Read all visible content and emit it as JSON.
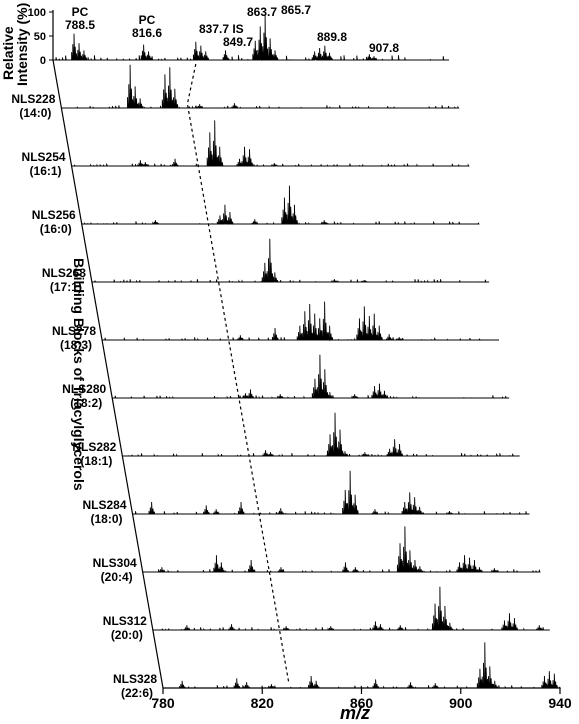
{
  "chart_data": {
    "type": "line",
    "title": "",
    "xlabel": "m/z",
    "ylabel": "Relative Intensity (%)",
    "side_label": "Building Blocks of Triacylglycerols",
    "xlim": [
      780,
      940
    ],
    "x_ticks": [
      "780",
      "820",
      "860",
      "900",
      "940"
    ],
    "y_ticks_top": [
      "100",
      "50",
      "0"
    ],
    "top_spectrum": {
      "name": "",
      "peaks": [
        {
          "mz": 788.5,
          "label": "PC\n788.5",
          "intensity": 55
        },
        {
          "mz": 816.6,
          "label": "PC\n816.6",
          "intensity": 32
        },
        {
          "mz": 837.7,
          "label": "837.7",
          "intensity": 38
        },
        {
          "mz": 849.7,
          "label": "IS\n849.7",
          "intensity": 20
        },
        {
          "mz": 863.7,
          "label": "863.7",
          "intensity": 70
        },
        {
          "mz": 865.7,
          "label": "865.7",
          "intensity": 95
        },
        {
          "mz": 889.8,
          "label": "889.8",
          "intensity": 30
        },
        {
          "mz": 907.8,
          "label": "907.8",
          "intensity": 12
        }
      ]
    },
    "series": [
      {
        "name": "NLS228",
        "sub": "(14:0)",
        "peaks": [
          [
            807.7,
            90
          ],
          [
            809.7,
            45
          ],
          [
            811.7,
            20
          ],
          [
            821.7,
            70
          ],
          [
            823.7,
            85
          ],
          [
            825.7,
            40
          ],
          [
            835.7,
            8
          ],
          [
            849.7,
            10
          ]
        ]
      },
      {
        "name": "NLS254",
        "sub": "(16:1)",
        "peaks": [
          [
            807.7,
            12
          ],
          [
            809.7,
            8
          ],
          [
            821.7,
            15
          ],
          [
            835.7,
            70
          ],
          [
            837.7,
            95
          ],
          [
            839.7,
            40
          ],
          [
            847.7,
            15
          ],
          [
            849.7,
            40
          ],
          [
            851.7,
            35
          ],
          [
            861.7,
            6
          ]
        ]
      },
      {
        "name": "NLS256",
        "sub": "(16:0)",
        "peaks": [
          [
            809.7,
            8
          ],
          [
            835.7,
            18
          ],
          [
            837.7,
            40
          ],
          [
            839.7,
            25
          ],
          [
            849.7,
            10
          ],
          [
            861.7,
            55
          ],
          [
            863.7,
            80
          ],
          [
            865.7,
            40
          ],
          [
            877.7,
            8
          ]
        ]
      },
      {
        "name": "NLS268",
        "sub": "(17:1)",
        "peaks": [
          [
            849.7,
            40
          ],
          [
            851.7,
            90
          ],
          [
            853.7,
            20
          ],
          [
            877.7,
            6
          ],
          [
            889.7,
            4
          ]
        ]
      },
      {
        "name": "NLS278",
        "sub": "(18:3)",
        "peaks": [
          [
            835.7,
            10
          ],
          [
            849.7,
            25
          ],
          [
            859.7,
            30
          ],
          [
            861.7,
            60
          ],
          [
            863.7,
            75
          ],
          [
            865.7,
            55
          ],
          [
            867.7,
            45
          ],
          [
            869.7,
            80
          ],
          [
            871.7,
            30
          ],
          [
            883.7,
            45
          ],
          [
            885.7,
            70
          ],
          [
            887.7,
            50
          ],
          [
            889.7,
            55
          ],
          [
            891.7,
            30
          ],
          [
            895.7,
            12
          ],
          [
            899.7,
            6
          ]
        ]
      },
      {
        "name": "NLS280",
        "sub": "(18:2)",
        "peaks": [
          [
            833.7,
            10
          ],
          [
            835.7,
            18
          ],
          [
            847.7,
            8
          ],
          [
            861.7,
            40
          ],
          [
            863.7,
            90
          ],
          [
            865.7,
            60
          ],
          [
            867.7,
            12
          ],
          [
            877.7,
            8
          ],
          [
            885.7,
            25
          ],
          [
            887.7,
            30
          ],
          [
            889.7,
            15
          ]
        ]
      },
      {
        "name": "NLS282",
        "sub": "(18:1)",
        "peaks": [
          [
            837.7,
            12
          ],
          [
            839.7,
            8
          ],
          [
            863.7,
            45
          ],
          [
            865.7,
            90
          ],
          [
            867.7,
            55
          ],
          [
            869.7,
            10
          ],
          [
            877.7,
            8
          ],
          [
            887.7,
            15
          ],
          [
            889.7,
            35
          ],
          [
            891.7,
            25
          ]
        ]
      },
      {
        "name": "NLS284",
        "sub": "(18:0)",
        "peaks": [
          [
            787.7,
            25
          ],
          [
            809.7,
            18
          ],
          [
            813.7,
            10
          ],
          [
            823.7,
            25
          ],
          [
            839.7,
            12
          ],
          [
            865.7,
            50
          ],
          [
            867.7,
            90
          ],
          [
            869.7,
            40
          ],
          [
            877.7,
            10
          ],
          [
            889.7,
            25
          ],
          [
            891.7,
            45
          ],
          [
            893.7,
            35
          ],
          [
            895.7,
            15
          ],
          [
            907.7,
            6
          ]
        ]
      },
      {
        "name": "NLS304",
        "sub": "(20:4)",
        "peaks": [
          [
            787.7,
            10
          ],
          [
            809.7,
            35
          ],
          [
            811.7,
            20
          ],
          [
            823.7,
            25
          ],
          [
            835.7,
            10
          ],
          [
            861.7,
            20
          ],
          [
            865.7,
            10
          ],
          [
            883.7,
            60
          ],
          [
            885.7,
            95
          ],
          [
            887.7,
            45
          ],
          [
            889.7,
            25
          ],
          [
            891.7,
            12
          ],
          [
            907.7,
            20
          ],
          [
            909.7,
            35
          ],
          [
            911.7,
            30
          ],
          [
            913.7,
            25
          ],
          [
            915.7,
            10
          ],
          [
            921.7,
            8
          ]
        ]
      },
      {
        "name": "NLS312",
        "sub": "(20:0)",
        "peaks": [
          [
            793.7,
            10
          ],
          [
            811.7,
            12
          ],
          [
            833.7,
            8
          ],
          [
            851.7,
            8
          ],
          [
            869.7,
            18
          ],
          [
            871.7,
            12
          ],
          [
            879.7,
            10
          ],
          [
            893.7,
            55
          ],
          [
            895.7,
            90
          ],
          [
            897.7,
            50
          ],
          [
            899.7,
            15
          ],
          [
            921.7,
            20
          ],
          [
            923.7,
            35
          ],
          [
            925.7,
            25
          ],
          [
            935.7,
            10
          ]
        ]
      },
      {
        "name": "NLS328",
        "sub": "(22:6)",
        "peaks": [
          [
            787.7,
            15
          ],
          [
            809.7,
            20
          ],
          [
            813.7,
            12
          ],
          [
            823.7,
            8
          ],
          [
            839.7,
            25
          ],
          [
            841.7,
            15
          ],
          [
            865.7,
            18
          ],
          [
            879.7,
            12
          ],
          [
            889.7,
            10
          ],
          [
            907.7,
            40
          ],
          [
            909.7,
            95
          ],
          [
            911.7,
            45
          ],
          [
            913.7,
            15
          ],
          [
            933.7,
            25
          ],
          [
            935.7,
            35
          ],
          [
            937.7,
            30
          ]
        ]
      }
    ],
    "dashed_trace": "837.7 connecting across panels",
    "grid": false,
    "legend": "none"
  }
}
